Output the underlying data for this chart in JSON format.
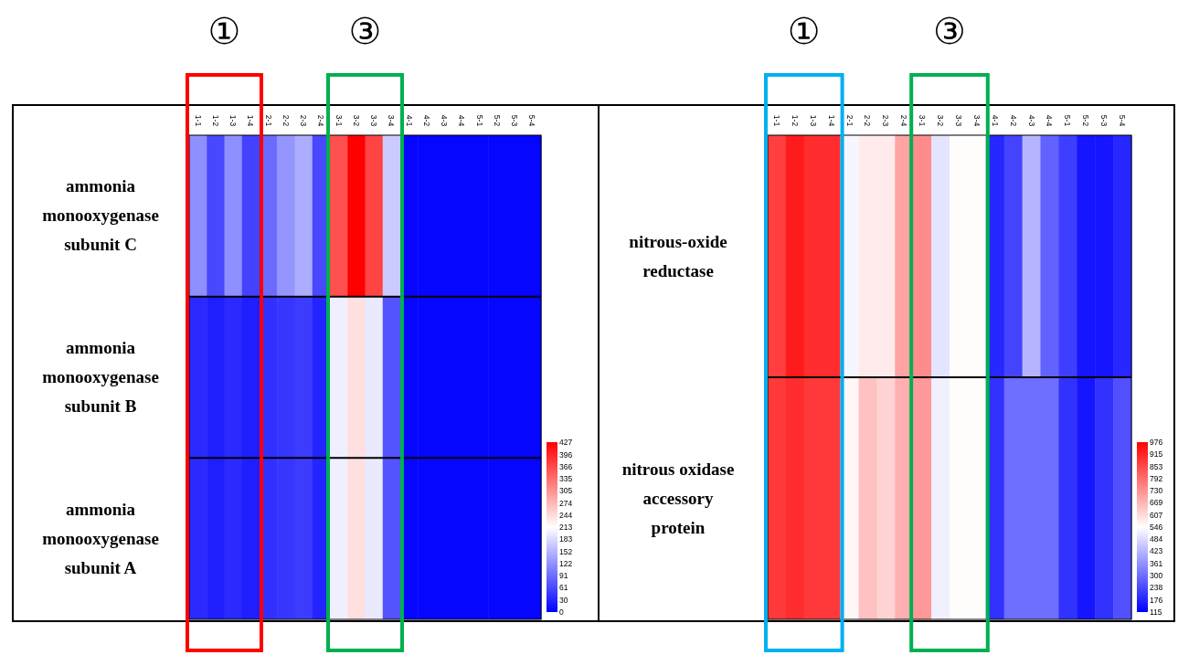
{
  "chart_data": [
    {
      "type": "heatmap",
      "categories": [
        "1-1",
        "1-2",
        "1-3",
        "1-4",
        "2-1",
        "2-2",
        "2-3",
        "2-4",
        "3-1",
        "3-2",
        "3-3",
        "3-4",
        "4-1",
        "4-2",
        "4-3",
        "4-4",
        "5-1",
        "5-2",
        "5-3",
        "5-4"
      ],
      "y_categories": [
        "ammonia monooxygenase subunit C",
        "ammonia monooxygenase subunit B",
        "ammonia monooxygenase subunit A"
      ],
      "cells": [
        [
          120,
          60,
          120,
          55,
          90,
          125,
          145,
          60,
          360,
          427,
          370,
          170,
          5,
          5,
          5,
          5,
          5,
          5,
          5,
          5
        ],
        [
          35,
          25,
          35,
          25,
          40,
          45,
          50,
          30,
          200,
          240,
          195,
          70,
          5,
          5,
          5,
          5,
          5,
          5,
          5,
          5
        ],
        [
          35,
          25,
          35,
          25,
          40,
          45,
          50,
          30,
          200,
          240,
          195,
          70,
          5,
          5,
          5,
          5,
          5,
          5,
          5,
          5
        ]
      ],
      "clim": [
        0,
        427
      ],
      "cticks": [
        0,
        30,
        61,
        91,
        122,
        152,
        183,
        213,
        244,
        274,
        305,
        335,
        366,
        396,
        427
      ],
      "annotations": [
        "①",
        "③"
      ]
    },
    {
      "type": "heatmap",
      "categories": [
        "1-1",
        "1-2",
        "1-3",
        "1-4",
        "2-1",
        "2-2",
        "2-3",
        "2-4",
        "3-1",
        "3-2",
        "3-3",
        "3-4",
        "4-1",
        "4-2",
        "4-3",
        "4-4",
        "5-1",
        "5-2",
        "5-3",
        "5-4"
      ],
      "y_categories": [
        "nitrous-oxide reductase",
        "nitrous oxidase accessory protein"
      ],
      "cells": [
        [
          870,
          930,
          900,
          900,
          530,
          580,
          580,
          700,
          740,
          500,
          550,
          550,
          180,
          230,
          420,
          280,
          220,
          150,
          150,
          180
        ],
        [
          880,
          900,
          880,
          880,
          560,
          650,
          620,
          680,
          720,
          520,
          550,
          550,
          200,
          300,
          300,
          300,
          200,
          150,
          200,
          250
        ]
      ],
      "clim": [
        115,
        976
      ],
      "cticks": [
        115,
        176,
        238,
        300,
        361,
        423,
        484,
        546,
        607,
        669,
        730,
        792,
        853,
        915,
        976
      ],
      "annotations": [
        "①",
        "③"
      ]
    }
  ]
}
